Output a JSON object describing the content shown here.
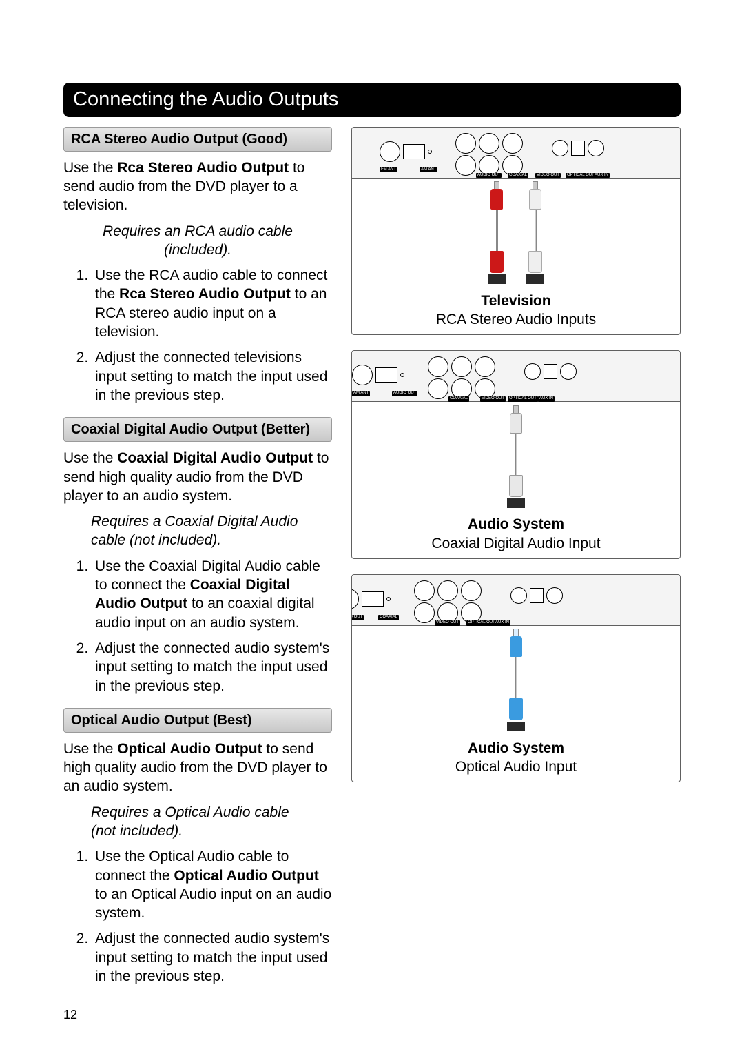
{
  "title": "Connecting the Audio Outputs",
  "page_number": "12",
  "sections": [
    {
      "header": "RCA Stereo Audio Output (Good)",
      "intro_pre": "Use the ",
      "intro_bold": "Rca Stereo Audio Output",
      "intro_post": " to send audio from the DVD player to a television.",
      "note": "Requires an RCA audio cable (included).",
      "note_align": "center",
      "steps": [
        {
          "pre": "Use the RCA audio cable to connect the ",
          "bold": "Rca Stereo Audio Output",
          "post": " to an RCA stereo audio input on a television."
        },
        {
          "pre": "Adjust the connected televisions input setting to match the input used in the previous step.",
          "bold": "",
          "post": ""
        }
      ],
      "figure": {
        "cable_type": "rca",
        "caption_bold": "Television",
        "caption_plain": "RCA Stereo Audio Inputs",
        "panel_labels": [
          "FM ANT",
          "AM ANT",
          "AUDIO OUT",
          "COAXIAL",
          "VIDEO OUT",
          "OPTICAL OUT",
          "AUX IN"
        ]
      }
    },
    {
      "header": "Coaxial Digital Audio Output (Better)",
      "intro_pre": "Use the ",
      "intro_bold": "Coaxial Digital Audio Output",
      "intro_post": " to send high quality audio from the DVD player to an audio system.",
      "note": "Requires a Coaxial Digital Audio cable (not included).",
      "note_align": "left",
      "steps": [
        {
          "pre": "Use the Coaxial Digital Audio cable to connect the ",
          "bold": "Coaxial Digital Audio Output",
          "post": " to an coaxial digital audio input on an audio system."
        },
        {
          "pre": "Adjust the connected audio system's input setting to match the input used in the previous step.",
          "bold": "",
          "post": ""
        }
      ],
      "figure": {
        "cable_type": "coax",
        "caption_bold": "Audio System",
        "caption_plain": "Coaxial Digital Audio Input",
        "panel_labels": [
          "AM ANT",
          "AUDIO OUT",
          "COAXIAL",
          "VIDEO OUT",
          "OPTICAL OUT",
          "AUX IN"
        ]
      }
    },
    {
      "header": "Optical Audio Output (Best)",
      "intro_pre": "Use the ",
      "intro_bold": "Optical Audio Output",
      "intro_post": " to send high quality audio from the DVD player to an audio system.",
      "note": "Requires a Optical Audio cable (not included).",
      "note_align": "left",
      "steps": [
        {
          "pre": "Use the Optical Audio cable to connect the ",
          "bold": "Optical Audio Output",
          "post": " to an Optical Audio input on an audio system."
        },
        {
          "pre": "Adjust the connected audio system's input setting to match the input used in the previous step.",
          "bold": "",
          "post": ""
        }
      ],
      "figure": {
        "cable_type": "optical",
        "caption_bold": "Audio System",
        "caption_plain": "Optical Audio Input",
        "panel_labels": [
          "AUDIO OUT",
          "COAXIAL",
          "VIDEO OUT",
          "OPTICAL OUT",
          "AUX IN"
        ]
      }
    }
  ],
  "colors": {
    "header_bg": "#000000",
    "header_fg": "#ffffff",
    "sub_bg": "#d6d6d6",
    "red": "#cc1818",
    "blue": "#3a9be0"
  }
}
